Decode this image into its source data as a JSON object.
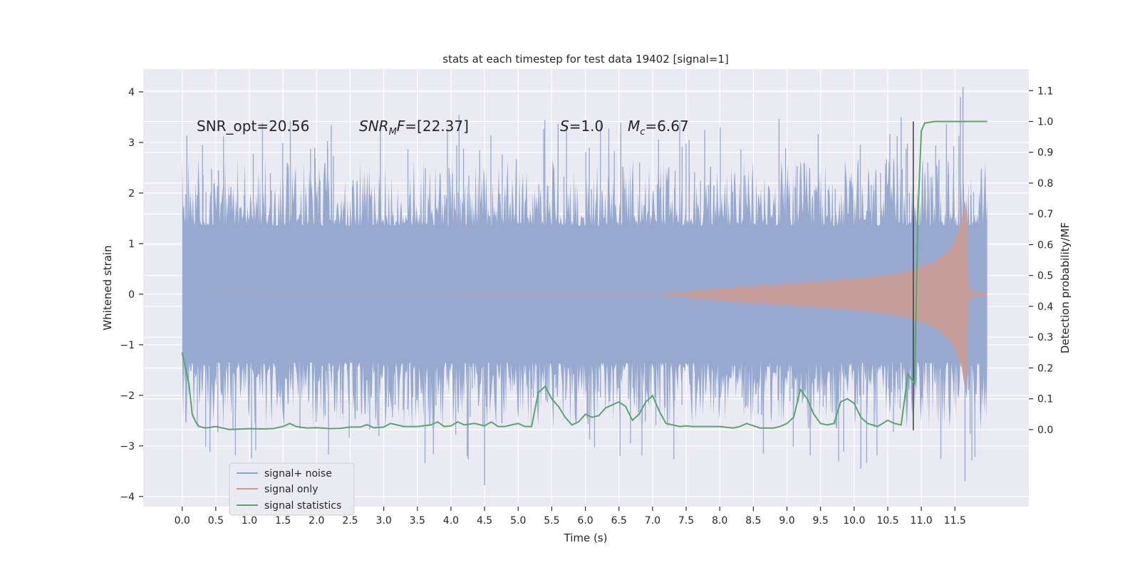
{
  "chart_data": {
    "type": "line",
    "title": "stats at each timestep for test data 19402 [signal=1]",
    "xlabel": "Time (s)",
    "ylabel_left": "Whitened strain",
    "ylabel_right": "Detection probability/MF",
    "xlim": [
      -0.58,
      12.6
    ],
    "ylim_left": [
      -4.2,
      4.45
    ],
    "ylim_right": [
      -0.25,
      1.17
    ],
    "x_ticks": [
      0.0,
      0.5,
      1.0,
      1.5,
      2.0,
      2.5,
      3.0,
      3.5,
      4.0,
      4.5,
      5.0,
      5.5,
      6.0,
      6.5,
      7.0,
      7.5,
      8.0,
      8.5,
      9.0,
      9.5,
      10.0,
      10.5,
      11.0,
      11.5
    ],
    "x_tick_labels": [
      "0.0",
      "0.5",
      "1.0",
      "1.5",
      "2.0",
      "2.5",
      "3.0",
      "3.5",
      "4.0",
      "4.5",
      "5.0",
      "5.5",
      "6.0",
      "6.5",
      "7.0",
      "7.5",
      "8.0",
      "8.5",
      "9.0",
      "9.5",
      "10.0",
      "10.5",
      "11.0",
      "11.5"
    ],
    "y_left_ticks": [
      4,
      3,
      2,
      1,
      0,
      -1,
      -2,
      -3,
      -4
    ],
    "y_left_tick_labels": [
      "4",
      "3",
      "2",
      "1",
      "0",
      "−1",
      "−2",
      "−3",
      "−4"
    ],
    "y_right_ticks": [
      1.1,
      1.0,
      0.9,
      0.8,
      0.7,
      0.6,
      0.5,
      0.4,
      0.3,
      0.2,
      0.1,
      0.0
    ],
    "y_right_tick_labels": [
      "1.1",
      "1.0",
      "0.9",
      "0.8",
      "0.7",
      "0.6",
      "0.5",
      "0.4",
      "0.3",
      "0.2",
      "0.1",
      "0.0"
    ],
    "grid": true,
    "legend_position": "lower-left",
    "annotations": [
      {
        "label": "SNR_opt=20.56",
        "x": 0.2,
        "y": 3.3
      },
      {
        "label": "SNR_MF=[22.37]",
        "x": 2.6,
        "y": 3.3
      },
      {
        "label": "S=1.0",
        "x": 5.6,
        "y": 3.3
      },
      {
        "label": "M_c=6.67",
        "x": 6.6,
        "y": 3.3
      }
    ],
    "vertical_marker": {
      "x": 10.88,
      "y_right": [
        -0.002,
        1.0
      ]
    },
    "series": [
      {
        "name": "signal+ noise",
        "axis": "left",
        "color": "#8ea3cc",
        "x_range": [
          0.0,
          11.98
        ],
        "envelope_core": [
          -1.35,
          1.35
        ],
        "envelope_max": [
          -3.78,
          4.1
        ],
        "description_values": {
          "peak_max": 4.1,
          "peak_min": -3.78
        }
      },
      {
        "name": "signal only",
        "axis": "left",
        "color": "#e0957a",
        "x": [
          0.0,
          7.0,
          7.5,
          8.0,
          8.5,
          9.0,
          9.5,
          10.0,
          10.5,
          10.8,
          11.0,
          11.2,
          11.4,
          11.5,
          11.6,
          11.65,
          11.68,
          11.7,
          11.75,
          11.98
        ],
        "amplitude": [
          0.0,
          0.01,
          0.05,
          0.12,
          0.17,
          0.21,
          0.26,
          0.31,
          0.38,
          0.46,
          0.55,
          0.65,
          0.85,
          1.05,
          1.45,
          1.85,
          1.5,
          0.2,
          0.05,
          0.03
        ]
      },
      {
        "name": "signal statistics",
        "axis": "right",
        "color": "#55a868",
        "x": [
          0.0,
          0.1,
          0.15,
          0.2,
          0.25,
          0.35,
          0.5,
          0.7,
          0.9,
          1.0,
          1.2,
          1.35,
          1.5,
          1.6,
          1.7,
          1.85,
          2.0,
          2.2,
          2.35,
          2.5,
          2.65,
          2.75,
          2.85,
          3.0,
          3.1,
          3.3,
          3.5,
          3.7,
          3.8,
          3.9,
          4.0,
          4.1,
          4.2,
          4.35,
          4.5,
          4.6,
          4.7,
          4.8,
          4.9,
          5.0,
          5.1,
          5.2,
          5.3,
          5.4,
          5.5,
          5.6,
          5.7,
          5.8,
          5.9,
          6.0,
          6.1,
          6.2,
          6.3,
          6.4,
          6.5,
          6.6,
          6.7,
          6.8,
          6.9,
          7.0,
          7.1,
          7.2,
          7.3,
          7.4,
          7.5,
          7.6,
          7.8,
          8.0,
          8.2,
          8.3,
          8.4,
          8.6,
          8.8,
          8.9,
          9.0,
          9.1,
          9.2,
          9.3,
          9.4,
          9.5,
          9.6,
          9.7,
          9.8,
          9.9,
          10.0,
          10.1,
          10.2,
          10.35,
          10.5,
          10.6,
          10.7,
          10.8,
          10.9,
          10.95,
          11.0,
          11.05,
          11.2,
          11.5,
          11.98
        ],
        "values": [
          0.25,
          0.15,
          0.05,
          0.025,
          0.01,
          0.005,
          0.01,
          0.0,
          0.002,
          0.003,
          0.002,
          0.003,
          0.01,
          0.02,
          0.01,
          0.005,
          0.006,
          0.003,
          0.004,
          0.008,
          0.008,
          0.016,
          0.006,
          0.008,
          0.02,
          0.01,
          0.01,
          0.015,
          0.025,
          0.01,
          0.012,
          0.025,
          0.015,
          0.02,
          0.012,
          0.025,
          0.01,
          0.01,
          0.015,
          0.02,
          0.01,
          0.01,
          0.12,
          0.14,
          0.1,
          0.075,
          0.04,
          0.015,
          0.025,
          0.05,
          0.04,
          0.045,
          0.07,
          0.08,
          0.09,
          0.075,
          0.03,
          0.05,
          0.09,
          0.11,
          0.06,
          0.02,
          0.015,
          0.01,
          0.012,
          0.01,
          0.01,
          0.01,
          0.005,
          0.01,
          0.02,
          0.005,
          0.005,
          0.01,
          0.02,
          0.04,
          0.13,
          0.1,
          0.05,
          0.02,
          0.015,
          0.02,
          0.09,
          0.1,
          0.085,
          0.04,
          0.02,
          0.01,
          0.03,
          0.02,
          0.015,
          0.18,
          0.15,
          0.7,
          0.97,
          0.995,
          1.0,
          1.0,
          1.0
        ]
      }
    ]
  }
}
